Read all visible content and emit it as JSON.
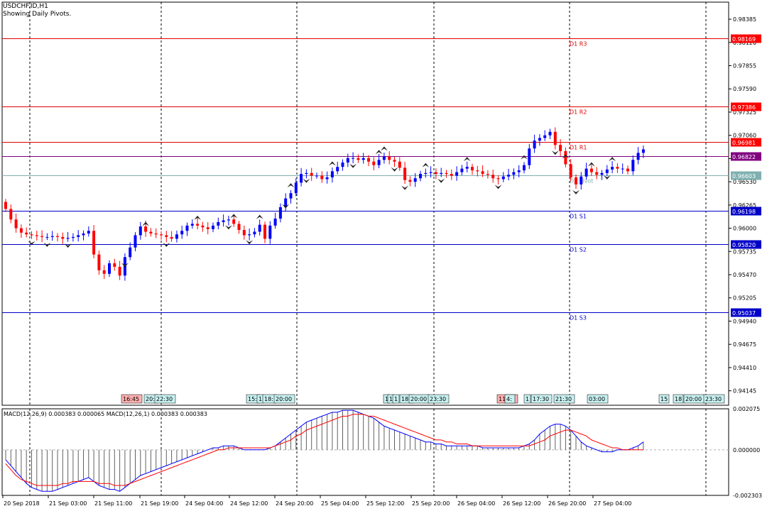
{
  "header": {
    "symbol_line": "USDCHF.ID,H1",
    "subtitle": "Showing Daily Pivots."
  },
  "colors": {
    "bull": "#0000ff",
    "bear": "#ff0000",
    "resistance": "#e00000",
    "support": "#0000c8",
    "pivot": "#7fb0b0",
    "current": "#800080"
  },
  "chart_data": {
    "type": "candlestick",
    "ylim": [
      0.9398,
      0.9858
    ],
    "y_ticks": [
      "0.98385",
      "0.98120",
      "0.97855",
      "0.97590",
      "0.97325",
      "0.97060",
      "0.96795",
      "0.96530",
      "0.96265",
      "0.96000",
      "0.95735",
      "0.95470",
      "0.95205",
      "0.94940",
      "0.94675",
      "0.94410",
      "0.94145"
    ],
    "pivots": [
      {
        "name": "D1 R3",
        "value": 0.98169,
        "kind": "resistance"
      },
      {
        "name": "D1 R2",
        "value": 0.97386,
        "kind": "resistance"
      },
      {
        "name": "D1 R1",
        "value": 0.96981,
        "kind": "resistance"
      },
      {
        "name": "D1 Pivot",
        "value": 0.96603,
        "kind": "pivot"
      },
      {
        "name": "D1 S1",
        "value": 0.96198,
        "kind": "support"
      },
      {
        "name": "D1 S2",
        "value": 0.9582,
        "kind": "support"
      },
      {
        "name": "D1 S3",
        "value": 0.95037,
        "kind": "support"
      }
    ],
    "current_price": "0.96822",
    "x_labels": [
      "20 Sep 2018",
      "21 Sep 03:00",
      "21 Sep 11:00",
      "21 Sep 19:00",
      "24 Sep 04:00",
      "24 Sep 12:00",
      "24 Sep 20:00",
      "25 Sep 04:00",
      "25 Sep 12:00",
      "25 Sep 20:00",
      "26 Sep 04:00",
      "26 Sep 12:00",
      "26 Sep 20:00",
      "27 Sep 04:00"
    ],
    "close_path": [
      0.9622,
      0.961,
      0.96,
      0.9595,
      0.9593,
      0.9592,
      0.9591,
      0.959,
      0.959,
      0.9591,
      0.959,
      0.9588,
      0.9589,
      0.959,
      0.9592,
      0.9594,
      0.9597,
      0.957,
      0.9552,
      0.9548,
      0.956,
      0.9556,
      0.9546,
      0.9567,
      0.9578,
      0.9592,
      0.9602,
      0.9596,
      0.9594,
      0.9593,
      0.9592,
      0.959,
      0.9588,
      0.9593,
      0.9597,
      0.9603,
      0.9605,
      0.9603,
      0.9601,
      0.9599,
      0.9603,
      0.9607,
      0.9609,
      0.961,
      0.9605,
      0.9598,
      0.9592,
      0.9593,
      0.9596,
      0.9604,
      0.9588,
      0.9603,
      0.9611,
      0.9624,
      0.9634,
      0.964,
      0.9652,
      0.9662,
      0.9663,
      0.966,
      0.966,
      0.9656,
      0.9658,
      0.9665,
      0.967,
      0.9675,
      0.968,
      0.968,
      0.9678,
      0.968,
      0.9676,
      0.9672,
      0.9678,
      0.9682,
      0.9678,
      0.9676,
      0.9669,
      0.9655,
      0.9653,
      0.9657,
      0.9662,
      0.9663,
      0.9664,
      0.9662,
      0.9663,
      0.9662,
      0.966,
      0.9664,
      0.9668,
      0.967,
      0.9666,
      0.9665,
      0.9662,
      0.9661,
      0.9657,
      0.9656,
      0.9659,
      0.9661,
      0.9664,
      0.9666,
      0.9672,
      0.9691,
      0.97,
      0.9703,
      0.9706,
      0.971,
      0.9695,
      0.9688,
      0.9673,
      0.9658,
      0.965,
      0.9659,
      0.9668,
      0.9664,
      0.9661,
      0.9663,
      0.9667,
      0.967,
      0.9668,
      0.9668,
      0.9665,
      0.9678,
      0.9686,
      0.969
    ],
    "time_markers": [
      "16:45",
      "20:",
      "22:30",
      "15:",
      "1",
      "18:",
      "20:00",
      "1",
      "1",
      "1",
      "18:",
      "20:00",
      "23:30",
      "11:00",
      "4:",
      "1",
      "17:30",
      "21:30",
      "03:00",
      "15",
      "18",
      "20:00",
      "23:30"
    ]
  },
  "macd": {
    "label": "MACD(12,26,9) 0.000383 0.000065 MACD(12,26,1) 0.000383 0.000383",
    "ylim": [
      -0.002303,
      0.002075
    ],
    "y_ticks": [
      "0.002075",
      "0.000000",
      "-0.002303"
    ],
    "histogram": [
      -0.0005,
      -0.0008,
      -0.0011,
      -0.0014,
      -0.0017,
      -0.0019,
      -0.002,
      -0.0021,
      -0.0021,
      -0.0021,
      -0.002,
      -0.0019,
      -0.0018,
      -0.0017,
      -0.0016,
      -0.0015,
      -0.0014,
      -0.0016,
      -0.0018,
      -0.0019,
      -0.002,
      -0.002,
      -0.0021,
      -0.0019,
      -0.0017,
      -0.0015,
      -0.0013,
      -0.0012,
      -0.0011,
      -0.001,
      -0.0009,
      -0.0008,
      -0.0007,
      -0.0006,
      -0.0005,
      -0.0004,
      -0.0003,
      -0.0002,
      -0.0001,
      0.0,
      0.0001,
      0.0001,
      0.0002,
      0.0002,
      0.0002,
      0.0001,
      0.0,
      0.0,
      0.0,
      0.0,
      0.0,
      0.0001,
      0.0002,
      0.0004,
      0.0006,
      0.0008,
      0.001,
      0.0012,
      0.0014,
      0.0015,
      0.0016,
      0.0017,
      0.0018,
      0.0019,
      0.0019,
      0.002,
      0.002,
      0.002,
      0.0019,
      0.0018,
      0.0017,
      0.0016,
      0.0014,
      0.0012,
      0.0011,
      0.001,
      0.0009,
      0.0008,
      0.0007,
      0.0006,
      0.0005,
      0.0004,
      0.0004,
      0.0003,
      0.0003,
      0.0002,
      0.0002,
      0.0002,
      0.0002,
      0.0002,
      0.0002,
      0.0002,
      0.0001,
      0.0001,
      0.0001,
      0.0001,
      0.0001,
      0.0001,
      0.0001,
      0.0001,
      0.0002,
      0.0003,
      0.0005,
      0.0008,
      0.001,
      0.0012,
      0.0013,
      0.0013,
      0.0012,
      0.001,
      0.0007,
      0.0004,
      0.0002,
      0.0001,
      0.0,
      -0.0001,
      -0.0001,
      -0.0001,
      0.0,
      0.0,
      0.0,
      0.0001,
      0.0002,
      0.0004
    ],
    "signal": [
      -0.0007,
      -0.001,
      -0.0013,
      -0.0015,
      -0.0016,
      -0.0017,
      -0.0018,
      -0.0018,
      -0.0018,
      -0.0018,
      -0.0018,
      -0.0017,
      -0.0017,
      -0.0016,
      -0.0016,
      -0.0016,
      -0.0016,
      -0.0016,
      -0.0017,
      -0.0017,
      -0.0017,
      -0.0018,
      -0.0018,
      -0.0018,
      -0.0017,
      -0.0016,
      -0.0015,
      -0.0014,
      -0.0013,
      -0.0012,
      -0.0011,
      -0.001,
      -0.0009,
      -0.0008,
      -0.0007,
      -0.0006,
      -0.0005,
      -0.0004,
      -0.0003,
      -0.0002,
      -0.0001,
      0.0,
      0.0,
      0.0001,
      0.0001,
      0.0001,
      0.0001,
      0.0001,
      0.0001,
      0.0001,
      0.0001,
      0.0001,
      0.0002,
      0.0003,
      0.0004,
      0.0005,
      0.0007,
      0.0008,
      0.001,
      0.0011,
      0.0012,
      0.0013,
      0.0014,
      0.0015,
      0.0016,
      0.0017,
      0.0017,
      0.0018,
      0.0018,
      0.0018,
      0.0017,
      0.0017,
      0.0016,
      0.0015,
      0.0014,
      0.0013,
      0.0012,
      0.0011,
      0.001,
      0.0009,
      0.0008,
      0.0007,
      0.0006,
      0.0005,
      0.0005,
      0.0004,
      0.0004,
      0.0003,
      0.0003,
      0.0003,
      0.0002,
      0.0002,
      0.0002,
      0.0002,
      0.0002,
      0.0002,
      0.0002,
      0.0002,
      0.0002,
      0.0002,
      0.0002,
      0.0002,
      0.0003,
      0.0004,
      0.0005,
      0.0007,
      0.0008,
      0.0009,
      0.001,
      0.001,
      0.0009,
      0.0008,
      0.0007,
      0.0005,
      0.0004,
      0.0003,
      0.0002,
      0.0001,
      0.0001,
      0.0,
      0.0,
      0.0,
      0.0,
      0.0
    ]
  }
}
